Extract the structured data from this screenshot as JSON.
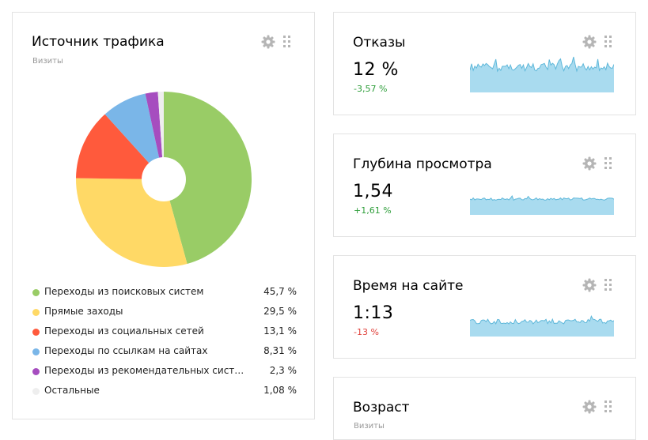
{
  "traffic": {
    "title": "Источник трафика",
    "subtitle": "Визиты",
    "chart_data": {
      "type": "pie",
      "title": "Источник трафика",
      "unit": "%",
      "categories": [
        "Переходы из поисковых систем",
        "Прямые заходы",
        "Переходы из социальных сетей",
        "Переходы по ссылкам на сайтах",
        "Переходы из рекомендательных сист…",
        "Остальные"
      ],
      "values": [
        45.7,
        29.5,
        13.1,
        8.31,
        2.3,
        1.08
      ],
      "colors": [
        "#99cc66",
        "#ffd966",
        "#ff5a3c",
        "#7ab6e8",
        "#a64dbf",
        "#eeeeee"
      ],
      "donut": true
    },
    "legend": [
      {
        "label": "Переходы из поисковых систем",
        "pct": "45,7 %"
      },
      {
        "label": "Прямые заходы",
        "pct": "29,5 %"
      },
      {
        "label": "Переходы из социальных сетей",
        "pct": "13,1 %"
      },
      {
        "label": "Переходы по ссылкам на сайтах",
        "pct": "8,31 %"
      },
      {
        "label": "Переходы из рекомендательных сист…",
        "pct": "2,3 %"
      },
      {
        "label": "Остальные",
        "pct": "1,08 %"
      }
    ]
  },
  "metrics": [
    {
      "title": "Отказы",
      "value": "12 %",
      "delta": "-3,57 %",
      "delta_color": "#2e9e3a"
    },
    {
      "title": "Глубина просмотра",
      "value": "1,54",
      "delta": "+1,61 %",
      "delta_color": "#2e9e3a"
    },
    {
      "title": "Время на сайте",
      "value": "1:13",
      "delta": "-13 %",
      "delta_color": "#e0403a"
    }
  ],
  "age": {
    "title": "Возраст",
    "subtitle": "Визиты"
  },
  "icons": {
    "settings": "gear-icon",
    "drag": "drag-handle-icon"
  },
  "colors": {
    "spark_fill": "#a9dbef",
    "spark_line": "#5fb8da"
  }
}
